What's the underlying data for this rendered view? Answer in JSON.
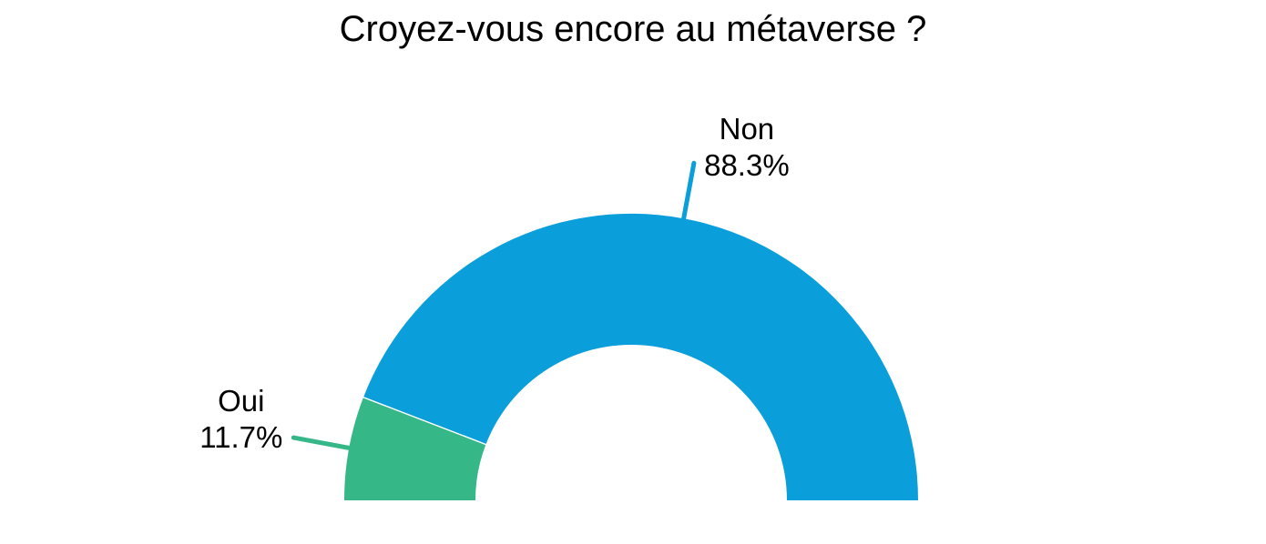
{
  "page": {
    "background_color": "#ffffff",
    "text_color": "#000000"
  },
  "chart_data": {
    "type": "pie",
    "variant": "half-donut",
    "title": "Croyez-vous encore au métaverse ?",
    "slices": [
      {
        "label": "Oui",
        "value": 11.7,
        "display_value": "11.7%",
        "color": "#35b788"
      },
      {
        "label": "Non",
        "value": 88.3,
        "display_value": "88.3%",
        "color": "#0a9eda"
      }
    ],
    "start_angle_deg": 180,
    "total_angle_deg": 180,
    "inner_radius_ratio": 0.543,
    "value_suffix": "%",
    "legend": "none",
    "labels": "outside-with-leader-lines",
    "separator_color": "#ffffff"
  }
}
